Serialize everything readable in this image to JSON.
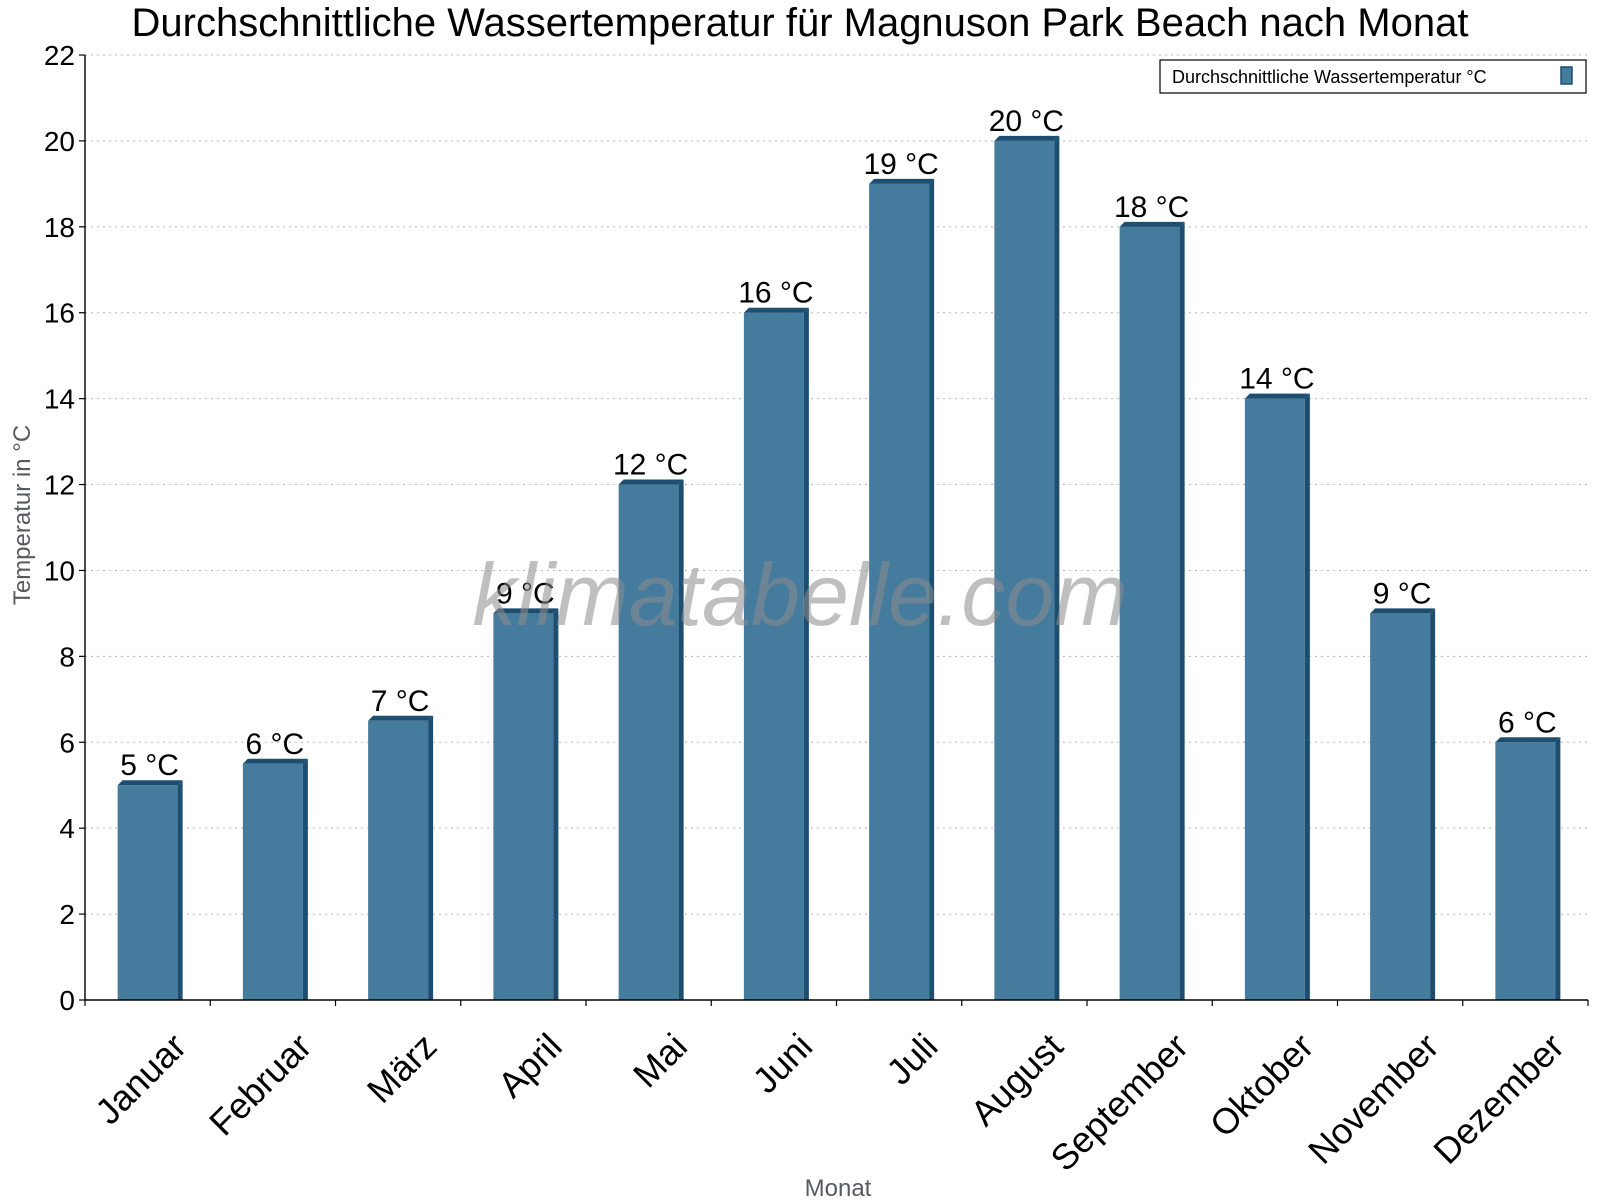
{
  "chart_data": {
    "type": "bar",
    "title": "Durchschnittliche Wassertemperatur für Magnuson Park Beach nach Monat",
    "xlabel": "Monat",
    "ylabel": "Temperatur in °C",
    "ylim": [
      0,
      22
    ],
    "yticks": [
      "0",
      "2",
      "4",
      "6",
      "8",
      "10",
      "12",
      "14",
      "16",
      "18",
      "20",
      "22"
    ],
    "grid": true,
    "legend_position": "top-right",
    "categories": [
      "Januar",
      "Februar",
      "März",
      "April",
      "Mai",
      "Juni",
      "Juli",
      "August",
      "September",
      "Oktober",
      "November",
      "Dezember"
    ],
    "series": [
      {
        "name": "Durchschnittliche Wassertemperatur °C",
        "values": [
          5,
          5.5,
          6.5,
          9,
          12,
          16,
          19,
          20,
          18,
          14,
          9,
          6
        ],
        "labels": [
          "5 °C",
          "6 °C",
          "7 °C",
          "9 °C",
          "12 °C",
          "16 °C",
          "19 °C",
          "20 °C",
          "18 °C",
          "14 °C",
          "9 °C",
          "6 °C"
        ],
        "color": "#457b9d",
        "edge_color": "#1d4e70"
      }
    ]
  },
  "watermark": "klimatabelle.com"
}
